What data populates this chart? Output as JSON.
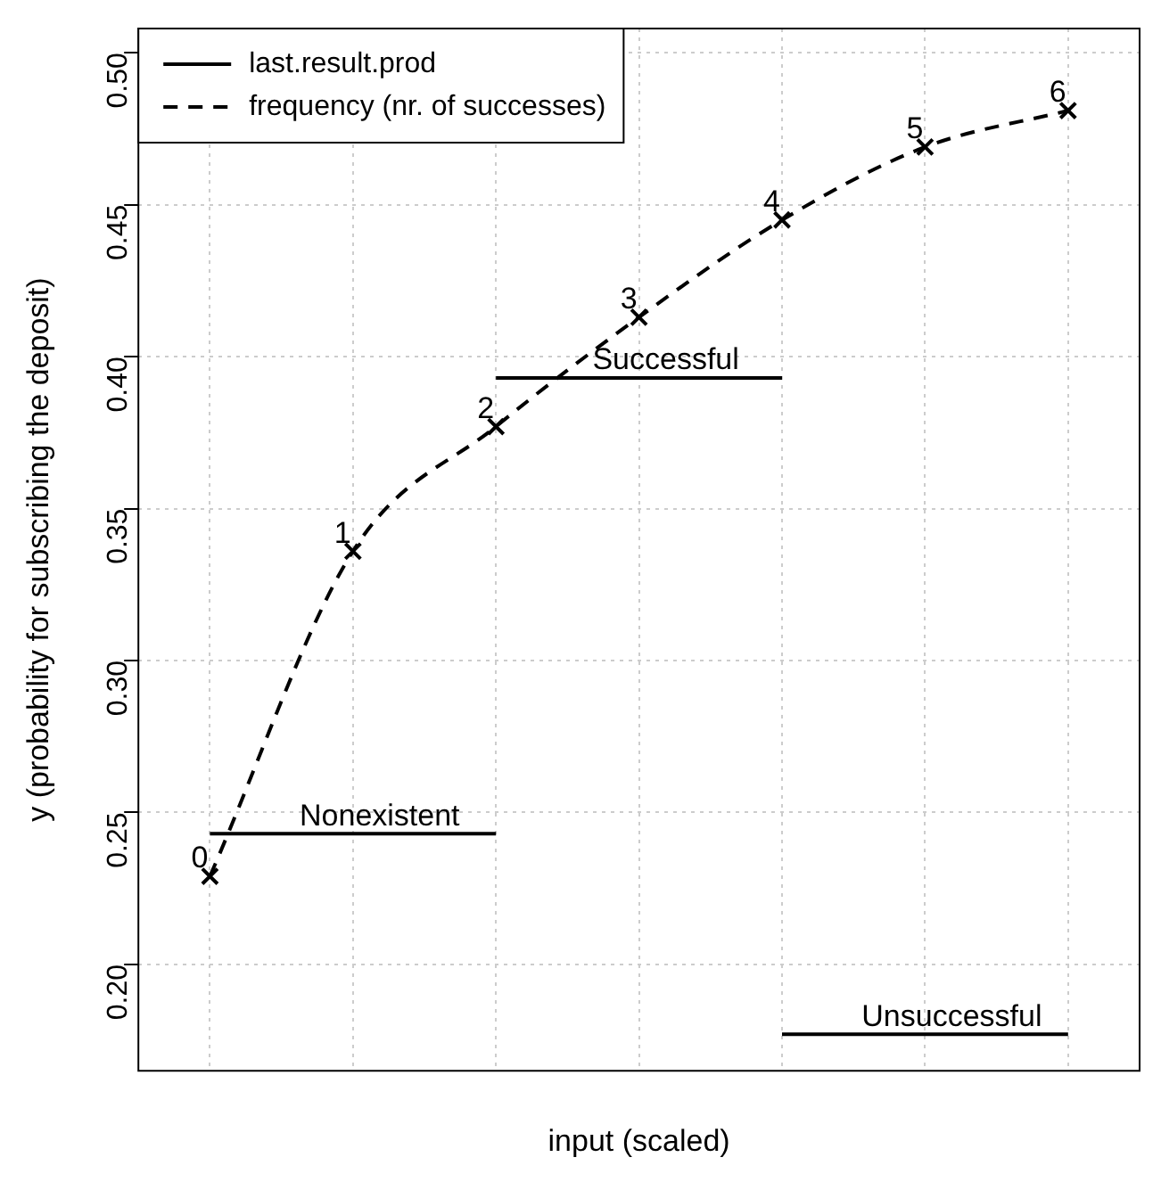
{
  "chart_data": {
    "type": "line",
    "xlabel": "input (scaled)",
    "ylabel": "y (probability for subscribing the deposit)",
    "categories": [
      null,
      null,
      null,
      null,
      null,
      null,
      null
    ],
    "series": [
      {
        "name": "last.result.prod",
        "line_style": "solid",
        "marker": "none",
        "color": "#000000",
        "values": [
          0.243,
          0.243,
          0.243,
          null,
          null,
          null,
          null
        ]
      },
      {
        "line_style": "solid",
        "marker": "none",
        "color": "#000000",
        "values": [
          null,
          null,
          0.393,
          0.393,
          0.393,
          null,
          null
        ]
      },
      {
        "line_style": "solid",
        "marker": "none",
        "color": "#000000",
        "values": [
          null,
          null,
          null,
          null,
          0.177,
          0.177,
          0.177
        ]
      },
      {
        "name": "frequency (nr. of successes)",
        "line_style": "dashed",
        "marker": "cross",
        "color": "#000000",
        "values": [
          0.229,
          0.336,
          0.377,
          0.413,
          0.445,
          0.469,
          0.481
        ]
      }
    ],
    "annotations": [
      {
        "text": "Nonexistent",
        "y": 0.243
      },
      {
        "text": "Successful",
        "y": 0.393
      },
      {
        "text": "Unsuccessful",
        "y": 0.177
      },
      {
        "text": "0",
        "y": 0.229
      },
      {
        "text": "1",
        "y": 0.336
      },
      {
        "text": "2",
        "y": 0.377
      },
      {
        "text": "3",
        "y": 0.413
      },
      {
        "text": "4",
        "y": 0.445
      },
      {
        "text": "5",
        "y": 0.469
      },
      {
        "text": "6",
        "y": 0.481
      }
    ],
    "ylim": [
      0.165,
      0.508
    ],
    "yticks": [
      {
        "value": 0.2,
        "label": "0.20"
      },
      {
        "value": 0.25,
        "label": "0.25"
      },
      {
        "value": 0.3,
        "label": "0.30"
      },
      {
        "value": 0.35,
        "label": "0.35"
      },
      {
        "value": 0.4,
        "label": "0.40"
      },
      {
        "value": 0.45,
        "label": "0.45"
      },
      {
        "value": 0.5,
        "label": "0.50"
      }
    ],
    "tick_labels": "y",
    "grid": true,
    "legend": "top left"
  }
}
